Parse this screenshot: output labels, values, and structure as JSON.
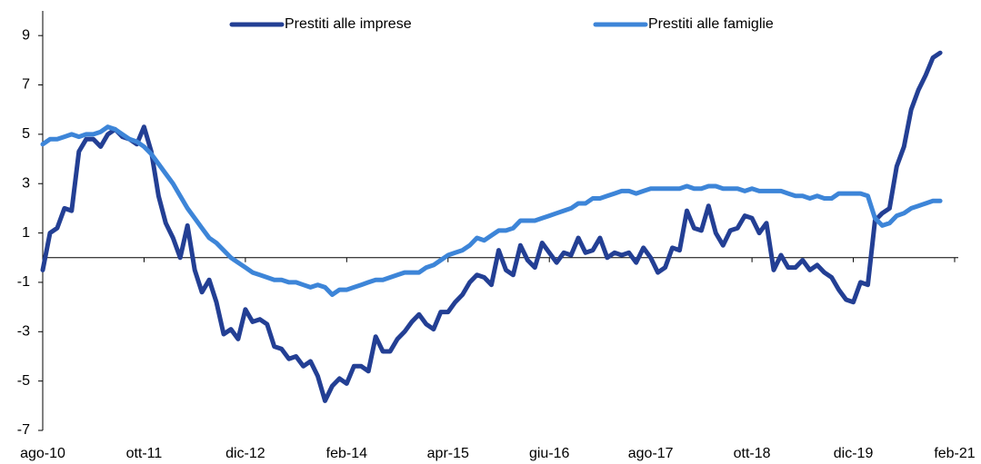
{
  "chart_data": {
    "type": "line",
    "categories": [
      "ago-10",
      null,
      null,
      null,
      null,
      null,
      null,
      null,
      null,
      null,
      null,
      null,
      null,
      null,
      "ott-11",
      null,
      null,
      null,
      null,
      null,
      null,
      null,
      null,
      null,
      null,
      null,
      null,
      null,
      "dic-12",
      null,
      null,
      null,
      null,
      null,
      null,
      null,
      null,
      null,
      null,
      null,
      null,
      null,
      "feb-14",
      null,
      null,
      null,
      null,
      null,
      null,
      null,
      null,
      null,
      null,
      null,
      null,
      null,
      "apr-15",
      null,
      null,
      null,
      null,
      null,
      null,
      null,
      null,
      null,
      null,
      null,
      null,
      null,
      "giu-16",
      null,
      null,
      null,
      null,
      null,
      null,
      null,
      null,
      null,
      null,
      null,
      null,
      null,
      "ago-17",
      null,
      null,
      null,
      null,
      null,
      null,
      null,
      null,
      null,
      null,
      null,
      null,
      null,
      "ott-18",
      null,
      null,
      null,
      null,
      null,
      null,
      null,
      null,
      null,
      null,
      null,
      null,
      null,
      "dic-19",
      null,
      null,
      null,
      null,
      null,
      null,
      null,
      null,
      null,
      null,
      null,
      null,
      null,
      "feb-21"
    ],
    "series": [
      {
        "name": "Prestiti alle imprese",
        "color": "#233f94",
        "values": [
          -0.5,
          1.0,
          1.2,
          2.0,
          1.9,
          4.3,
          4.8,
          4.8,
          4.5,
          5.0,
          5.2,
          4.9,
          4.8,
          4.6,
          5.3,
          4.3,
          2.5,
          1.4,
          0.8,
          0.0,
          1.3,
          -0.5,
          -1.4,
          -0.9,
          -1.8,
          -3.1,
          -2.9,
          -3.3,
          -2.1,
          -2.6,
          -2.5,
          -2.7,
          -3.6,
          -3.7,
          -4.1,
          -4.0,
          -4.4,
          -4.2,
          -4.8,
          -5.8,
          -5.2,
          -4.9,
          -5.1,
          -4.4,
          -4.4,
          -4.6,
          -3.2,
          -3.8,
          -3.8,
          -3.3,
          -3.0,
          -2.6,
          -2.3,
          -2.7,
          -2.9,
          -2.2,
          -2.2,
          -1.8,
          -1.5,
          -1.0,
          -0.7,
          -0.8,
          -1.1,
          0.3,
          -0.5,
          -0.7,
          0.5,
          -0.1,
          -0.4,
          0.6,
          0.2,
          -0.2,
          0.2,
          0.1,
          0.8,
          0.2,
          0.3,
          0.8,
          0.0,
          0.2,
          0.1,
          0.2,
          -0.2,
          0.4,
          0.0,
          -0.6,
          -0.4,
          0.4,
          0.3,
          1.9,
          1.2,
          1.1,
          2.1,
          1.0,
          0.5,
          1.1,
          1.2,
          1.7,
          1.6,
          1.0,
          1.4,
          -0.5,
          0.1,
          -0.4,
          -0.4,
          -0.1,
          -0.5,
          -0.3,
          -0.6,
          -0.8,
          -1.3,
          -1.7,
          -1.8,
          -1.0,
          -1.1,
          1.5,
          1.8,
          2.0,
          3.7,
          4.5,
          6.0,
          6.8,
          7.4,
          8.1,
          8.3,
          null,
          null
        ]
      },
      {
        "name": "Prestiti alle famiglie",
        "color": "#3d85d8",
        "values": [
          4.6,
          4.8,
          4.8,
          4.9,
          5.0,
          4.9,
          5.0,
          5.0,
          5.1,
          5.3,
          5.2,
          5.0,
          4.8,
          4.7,
          4.5,
          4.2,
          3.8,
          3.4,
          3.0,
          2.5,
          2.0,
          1.6,
          1.2,
          0.8,
          0.6,
          0.3,
          0.0,
          -0.2,
          -0.4,
          -0.6,
          -0.7,
          -0.8,
          -0.9,
          -0.9,
          -1.0,
          -1.0,
          -1.1,
          -1.2,
          -1.1,
          -1.2,
          -1.5,
          -1.3,
          -1.3,
          -1.2,
          -1.1,
          -1.0,
          -0.9,
          -0.9,
          -0.8,
          -0.7,
          -0.6,
          -0.6,
          -0.6,
          -0.4,
          -0.3,
          -0.1,
          0.1,
          0.2,
          0.3,
          0.5,
          0.8,
          0.7,
          0.9,
          1.1,
          1.1,
          1.2,
          1.5,
          1.5,
          1.5,
          1.6,
          1.7,
          1.8,
          1.9,
          2.0,
          2.2,
          2.2,
          2.4,
          2.4,
          2.5,
          2.6,
          2.7,
          2.7,
          2.6,
          2.7,
          2.8,
          2.8,
          2.8,
          2.8,
          2.8,
          2.9,
          2.8,
          2.8,
          2.9,
          2.9,
          2.8,
          2.8,
          2.8,
          2.7,
          2.8,
          2.7,
          2.7,
          2.7,
          2.7,
          2.6,
          2.5,
          2.5,
          2.4,
          2.5,
          2.4,
          2.4,
          2.6,
          2.6,
          2.6,
          2.6,
          2.5,
          1.6,
          1.3,
          1.4,
          1.7,
          1.8,
          2.0,
          2.1,
          2.2,
          2.3,
          2.3,
          null,
          null
        ]
      }
    ],
    "ylim": [
      -7,
      10
    ],
    "yticks": [
      -7,
      -5,
      -3,
      -1,
      1,
      3,
      5,
      7,
      9
    ],
    "legend": "top",
    "grid": false
  }
}
